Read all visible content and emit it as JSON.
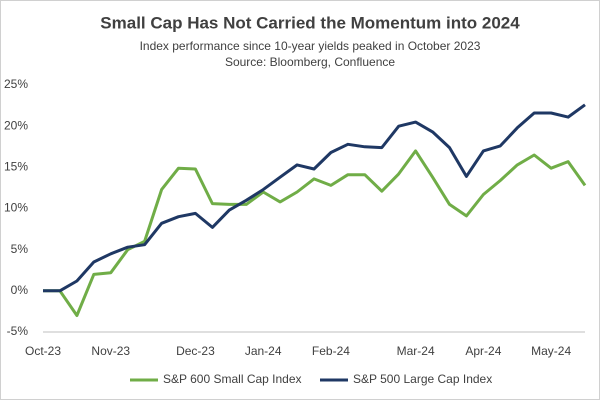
{
  "chart_data": {
    "type": "line",
    "title": "Small Cap Has Not Carried the Momentum into 2024",
    "subtitle": [
      "Index performance since 10-year yields peaked in October 2023",
      "Source: Bloomberg, Confluence"
    ],
    "categories": [
      "Oct-23",
      null,
      null,
      null,
      "Nov-23",
      null,
      null,
      null,
      null,
      "Dec-23",
      null,
      null,
      null,
      "Jan-24",
      null,
      null,
      null,
      "Feb-24",
      null,
      null,
      null,
      null,
      "Mar-24",
      null,
      null,
      null,
      "Apr-24",
      null,
      null,
      null,
      "May-24",
      null,
      null
    ],
    "series": [
      {
        "name": "S&P 600 Small Cap Index",
        "color": "#70ad47",
        "values": [
          0,
          0,
          -3,
          2,
          2.2,
          5,
          6,
          12.3,
          14.9,
          14.8,
          10.6,
          10.5,
          10.5,
          12,
          10.8,
          12,
          13.6,
          12.8,
          14.1,
          14.1,
          12.1,
          14.2,
          17,
          13.8,
          10.5,
          9.1,
          11.7,
          13.4,
          15.3,
          16.5,
          14.9,
          15.7,
          12.8
        ]
      },
      {
        "name": "S&P 500 Large Cap Index",
        "color": "#1f3864",
        "values": [
          0,
          0,
          1.2,
          3.5,
          4.5,
          5.3,
          5.6,
          8.2,
          9,
          9.4,
          7.7,
          9.8,
          11,
          12.3,
          13.8,
          15.3,
          14.8,
          16.8,
          17.8,
          17.5,
          17.4,
          20,
          20.5,
          19.3,
          17.4,
          13.9,
          17,
          17.6,
          19.8,
          21.6,
          21.6,
          21.1,
          22.6
        ]
      }
    ],
    "ylim": [
      -5,
      25
    ],
    "yticks": [
      {
        "value": -5,
        "label": "-5%"
      },
      {
        "value": 0,
        "label": "0%"
      },
      {
        "value": 5,
        "label": "5%"
      },
      {
        "value": 10,
        "label": "10%"
      },
      {
        "value": 15,
        "label": "15%"
      },
      {
        "value": 20,
        "label": "20%"
      },
      {
        "value": 25,
        "label": "25%"
      }
    ],
    "grid": false,
    "legend": "bottom"
  }
}
